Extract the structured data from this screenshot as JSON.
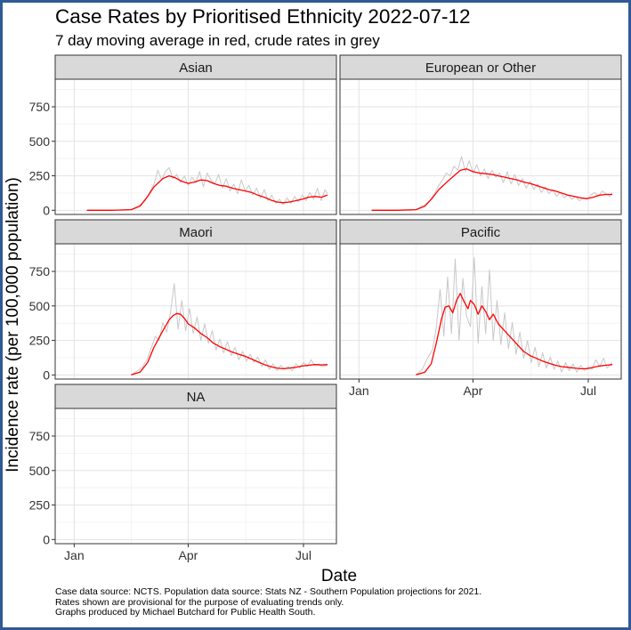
{
  "chart_data": {
    "type": "line",
    "title": "Case Rates by Prioritised Ethnicity 2022-07-12",
    "subtitle": "7 day moving average in red, crude rates in grey",
    "xlabel": "Date",
    "ylabel": "Incidence rate (per 100,000 population)",
    "x_tick_labels": [
      "Jan",
      "Apr",
      "Jul"
    ],
    "x_tick_days": [
      0,
      90,
      181
    ],
    "y_ticks": [
      0,
      250,
      500,
      750
    ],
    "ylim": [
      -30,
      950
    ],
    "xlim_days": [
      -15,
      207
    ],
    "grid": true,
    "colors": {
      "moving_average": "#ff0000",
      "crude": "#c8c8c8",
      "strip": "#d9d9d9"
    },
    "x_unit": "days since 2022-01-01",
    "panels": [
      {
        "name": "Asian",
        "moving_average": {
          "x": [
            10,
            30,
            45,
            52,
            58,
            63,
            70,
            75,
            80,
            85,
            90,
            95,
            100,
            105,
            110,
            115,
            120,
            125,
            130,
            135,
            140,
            145,
            150,
            155,
            160,
            165,
            170,
            175,
            180,
            185,
            190,
            195,
            200
          ],
          "y": [
            0,
            0,
            5,
            30,
            100,
            170,
            230,
            250,
            235,
            210,
            195,
            205,
            220,
            215,
            195,
            180,
            175,
            160,
            150,
            140,
            130,
            110,
            95,
            75,
            60,
            55,
            60,
            70,
            80,
            95,
            100,
            95,
            110
          ]
        },
        "crude": {
          "x": [
            10,
            30,
            45,
            52,
            56,
            60,
            63,
            66,
            69,
            72,
            75,
            78,
            81,
            84,
            87,
            90,
            93,
            96,
            99,
            102,
            105,
            108,
            111,
            114,
            117,
            120,
            123,
            126,
            129,
            132,
            135,
            138,
            141,
            144,
            147,
            150,
            153,
            156,
            159,
            162,
            165,
            168,
            171,
            174,
            177,
            180,
            183,
            186,
            189,
            192,
            195,
            198,
            200
          ],
          "y": [
            0,
            0,
            5,
            40,
            70,
            140,
            190,
            290,
            220,
            280,
            310,
            230,
            260,
            200,
            250,
            180,
            240,
            200,
            280,
            170,
            270,
            220,
            190,
            260,
            160,
            230,
            140,
            190,
            120,
            220,
            140,
            180,
            110,
            160,
            90,
            150,
            70,
            110,
            50,
            80,
            40,
            90,
            50,
            100,
            60,
            110,
            70,
            130,
            80,
            160,
            70,
            150,
            120
          ]
        }
      },
      {
        "name": "European or Other",
        "moving_average": {
          "x": [
            10,
            30,
            45,
            52,
            58,
            63,
            70,
            75,
            80,
            85,
            90,
            95,
            100,
            105,
            110,
            115,
            120,
            125,
            130,
            135,
            140,
            145,
            150,
            155,
            160,
            165,
            170,
            175,
            180,
            185,
            190,
            195,
            200
          ],
          "y": [
            0,
            0,
            5,
            30,
            90,
            150,
            210,
            250,
            290,
            300,
            280,
            270,
            265,
            260,
            250,
            240,
            230,
            220,
            205,
            195,
            180,
            165,
            150,
            140,
            125,
            110,
            100,
            90,
            85,
            95,
            110,
            115,
            115
          ]
        },
        "crude": {
          "x": [
            10,
            30,
            45,
            52,
            56,
            60,
            63,
            66,
            69,
            72,
            75,
            78,
            81,
            84,
            87,
            90,
            93,
            96,
            99,
            102,
            105,
            108,
            111,
            114,
            117,
            120,
            123,
            126,
            129,
            132,
            135,
            138,
            141,
            144,
            147,
            150,
            153,
            156,
            159,
            162,
            165,
            168,
            171,
            174,
            177,
            180,
            183,
            186,
            189,
            192,
            195,
            198,
            200
          ],
          "y": [
            0,
            0,
            5,
            40,
            70,
            130,
            180,
            220,
            270,
            250,
            320,
            290,
            390,
            280,
            360,
            270,
            330,
            250,
            300,
            230,
            290,
            240,
            270,
            200,
            280,
            190,
            260,
            180,
            230,
            160,
            210,
            150,
            190,
            130,
            170,
            120,
            150,
            100,
            130,
            90,
            110,
            80,
            100,
            70,
            90,
            80,
            110,
            130,
            100,
            140,
            120,
            100,
            130
          ]
        }
      },
      {
        "name": "Maori",
        "moving_average": {
          "x": [
            45,
            52,
            58,
            63,
            70,
            75,
            78,
            81,
            84,
            87,
            90,
            95,
            100,
            105,
            110,
            115,
            120,
            125,
            130,
            135,
            140,
            145,
            150,
            155,
            160,
            165,
            170,
            175,
            180,
            185,
            190,
            195,
            200
          ],
          "y": [
            0,
            20,
            90,
            200,
            320,
            400,
            430,
            445,
            440,
            410,
            370,
            340,
            300,
            270,
            230,
            205,
            185,
            165,
            150,
            135,
            115,
            95,
            75,
            60,
            50,
            45,
            50,
            55,
            65,
            70,
            75,
            72,
            75
          ]
        },
        "crude": {
          "x": [
            45,
            50,
            54,
            58,
            61,
            64,
            67,
            70,
            73,
            76,
            79,
            82,
            85,
            88,
            91,
            94,
            97,
            100,
            103,
            106,
            109,
            112,
            115,
            118,
            121,
            124,
            127,
            130,
            133,
            136,
            139,
            142,
            145,
            148,
            151,
            154,
            157,
            160,
            163,
            166,
            169,
            172,
            175,
            178,
            181,
            184,
            187,
            190,
            193,
            196,
            200
          ],
          "y": [
            0,
            30,
            60,
            120,
            200,
            280,
            250,
            380,
            310,
            450,
            660,
            330,
            540,
            320,
            480,
            300,
            420,
            250,
            370,
            230,
            320,
            180,
            260,
            160,
            240,
            140,
            200,
            110,
            170,
            100,
            150,
            90,
            130,
            60,
            110,
            40,
            80,
            30,
            70,
            40,
            60,
            30,
            80,
            50,
            90,
            60,
            110,
            70,
            80,
            60,
            70
          ]
        }
      },
      {
        "name": "Pacific",
        "moving_average": {
          "x": [
            45,
            52,
            57,
            61,
            65,
            68,
            71,
            74,
            77,
            80,
            83,
            86,
            88,
            91,
            94,
            97,
            100,
            103,
            106,
            110,
            114,
            118,
            122,
            126,
            130,
            135,
            140,
            145,
            150,
            155,
            160,
            165,
            170,
            175,
            180,
            185,
            190,
            195,
            200
          ],
          "y": [
            0,
            20,
            80,
            230,
            400,
            490,
            500,
            450,
            540,
            590,
            530,
            480,
            540,
            510,
            440,
            500,
            460,
            400,
            440,
            370,
            330,
            290,
            250,
            210,
            170,
            140,
            120,
            100,
            85,
            70,
            60,
            55,
            50,
            45,
            45,
            55,
            65,
            70,
            75
          ]
        },
        "crude": {
          "x": [
            45,
            50,
            54,
            58,
            61,
            64,
            67,
            70,
            73,
            76,
            79,
            82,
            85,
            88,
            91,
            94,
            97,
            100,
            103,
            106,
            109,
            112,
            115,
            118,
            121,
            124,
            127,
            130,
            133,
            136,
            139,
            142,
            145,
            148,
            151,
            154,
            157,
            160,
            163,
            166,
            169,
            172,
            175,
            178,
            181,
            184,
            187,
            190,
            193,
            196,
            200
          ],
          "y": [
            0,
            40,
            120,
            180,
            340,
            620,
            280,
            710,
            300,
            840,
            250,
            700,
            420,
            350,
            850,
            230,
            640,
            300,
            760,
            250,
            540,
            220,
            450,
            190,
            380,
            150,
            310,
            120,
            250,
            90,
            200,
            60,
            160,
            50,
            130,
            40,
            100,
            20,
            90,
            30,
            80,
            20,
            70,
            30,
            60,
            40,
            110,
            60,
            120,
            50,
            90
          ]
        }
      },
      {
        "name": "NA",
        "moving_average": {
          "x": [],
          "y": []
        },
        "crude": {
          "x": [],
          "y": []
        }
      }
    ],
    "footnotes": [
      "Case data source: NCTS. Population data source: Stats NZ -  Southern Population projections for 2021.",
      "Rates shown are provisional for the purpose of evaluating trends only.",
      "Graphs produced by Michael Butchard for Public Health South."
    ]
  }
}
